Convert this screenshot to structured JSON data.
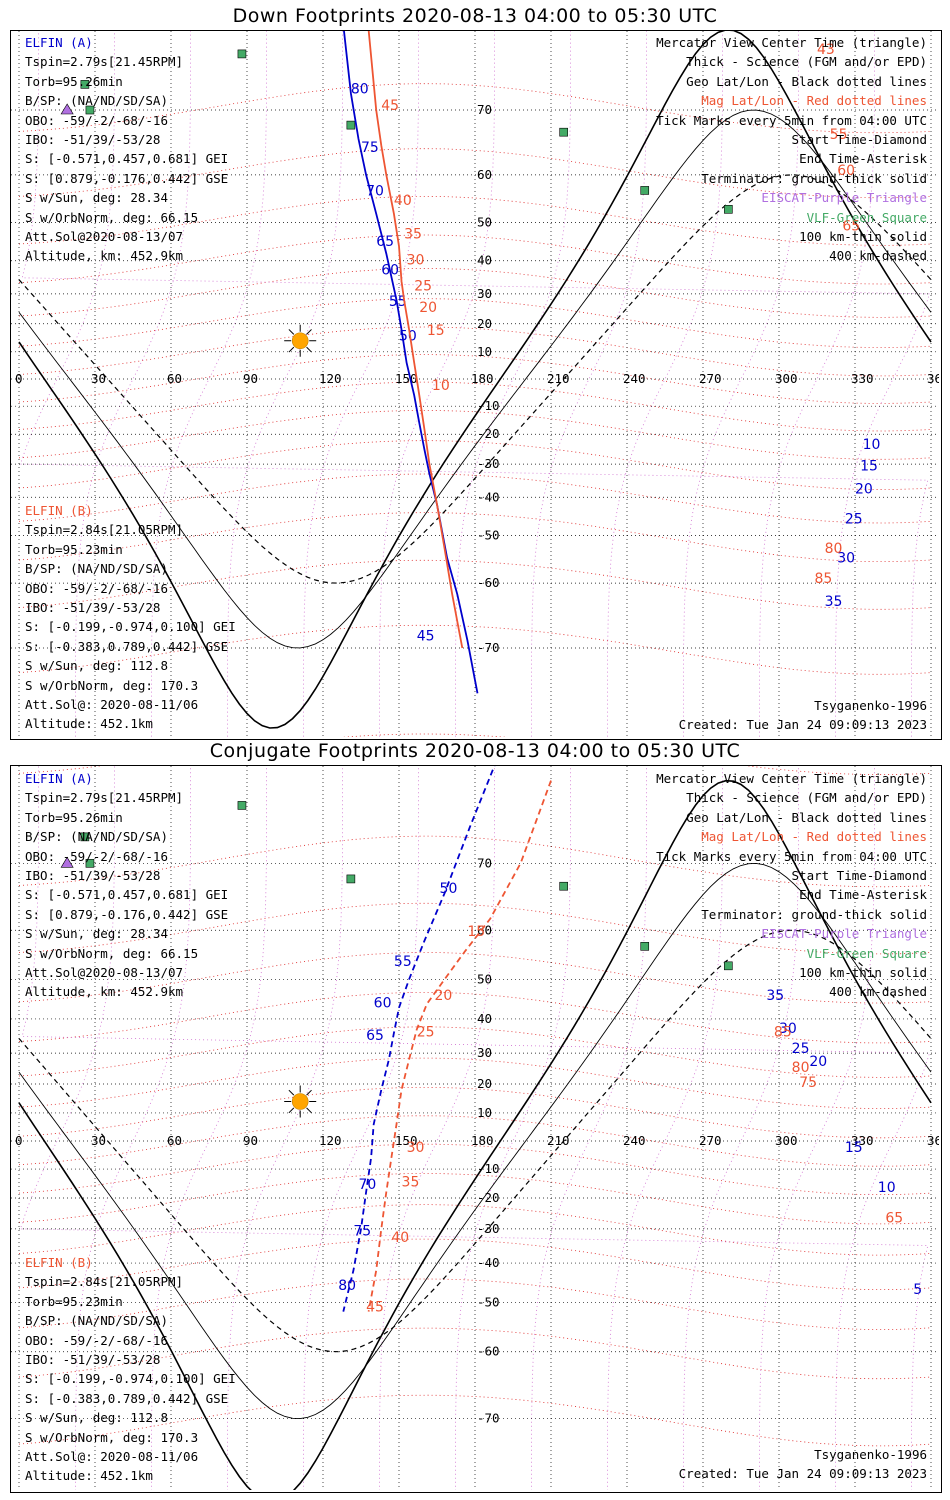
{
  "panels": [
    {
      "title": "Down Footprints 2020-08-13 04:00 to 05:30 UTC",
      "legend": {
        "line1": "Mercator View Center Time (triangle)",
        "line2": "Thick - Science (FGM and/or EPD)",
        "line3": "Geo Lat/Lon - Black dotted lines",
        "line4": "Mag Lat/Lon - Red dotted lines",
        "line5": "Tick Marks every 5min from 04:00 UTC",
        "line6": "Start Time-Diamond",
        "line7": "End Time-Asterisk",
        "line8": "Terminator: ground-thick solid",
        "line9": "EISCAT-Purple Triangle",
        "line10": "VLF-Green Square",
        "line11": "100 km-thin solid",
        "line12": "400 km-dashed"
      },
      "elfin_a": {
        "name": "ELFIN (A)",
        "l1": "Tspin=2.79s[21.45RPM]",
        "l2": "Torb=95.26min",
        "l3": "B/SP: (NA/ND/SD/SA)",
        "l4": "OBO: -59/-2/-68/-16",
        "l5": "IBO: -51/39/-53/28",
        "l6": "S: [-0.571,0.457,0.681] GEI",
        "l7": "S: [0.879,-0.176,0.442] GSE",
        "l8": "S w/Sun, deg: 28.34",
        "l9": "S w/OrbNorm, deg: 66.15",
        "l10": "Att.Sol@2020-08-13/07",
        "l11": "Altitude, km: 452.9km"
      },
      "elfin_b": {
        "name": "ELFIN (B)",
        "l1": "Tspin=2.84s[21.05RPM]",
        "l2": "Torb=95.23min",
        "l3": "B/SP: (NA/ND/SD/SA)",
        "l4": "OBO: -59/-2/-68/-16",
        "l5": "IBO: -51/39/-53/28",
        "l6": "S: [-0.199,-0.974,0.100] GEI",
        "l7": "S: [-0.383,0.789,0.442] GSE",
        "l8": "S w/Sun, deg: 112.8",
        "l9": "S w/OrbNorm, deg: 170.3",
        "l10": "Att.Sol@: 2020-08-11/06",
        "l11": "Altitude: 452.1km"
      },
      "model": "Tsyganenko-1996",
      "created": "Created: Tue Jan 24 09:09:13 2023"
    },
    {
      "title": "Conjugate Footprints 2020-08-13 04:00 to 05:30 UTC",
      "legend": {
        "line1": "Mercator View Center Time (triangle)",
        "line2": "Thick - Science (FGM and/or EPD)",
        "line3": "Geo Lat/Lon - Black dotted lines",
        "line4": "Mag Lat/Lon - Red dotted lines",
        "line5": "Tick Marks every 5min from 04:00 UTC",
        "line6": "Start Time-Diamond",
        "line7": "End Time-Asterisk",
        "line8": "Terminator: ground-thick solid",
        "line9": "EISCAT-Purple Triangle",
        "line10": "VLF-Green Square",
        "line11": "100 km-thin solid",
        "line12": "400 km-dashed"
      },
      "elfin_a": {
        "name": "ELFIN (A)",
        "l1": "Tspin=2.79s[21.45RPM]",
        "l2": "Torb=95.26min",
        "l3": "B/SP: (NA/ND/SD/SA)",
        "l4": "OBO: -59/-2/-68/-16",
        "l5": "IBO: -51/39/-53/28",
        "l6": "S: [-0.571,0.457,0.681] GEI",
        "l7": "S: [0.879,-0.176,0.442] GSE",
        "l8": "S w/Sun, deg: 28.34",
        "l9": "S w/OrbNorm, deg: 66.15",
        "l10": "Att.Sol@2020-08-13/07",
        "l11": "Altitude, km: 452.9km"
      },
      "elfin_b": {
        "name": "ELFIN (B)",
        "l1": "Tspin=2.84s[21.05RPM]",
        "l2": "Torb=95.23min",
        "l3": "B/SP: (NA/ND/SD/SA)",
        "l4": "OBO: -59/-2/-68/-16",
        "l5": "IBO: -51/39/-53/28",
        "l6": "S: [-0.199,-0.974,0.100] GEI",
        "l7": "S: [-0.383,0.789,0.442] GSE",
        "l8": "S w/Sun, deg: 112.8",
        "l9": "S w/OrbNorm, deg: 170.3",
        "l10": "Att.Sol@: 2020-08-11/06",
        "l11": "Altitude: 452.1km"
      },
      "model": "Tsyganenko-1996",
      "created": "Created: Tue Jan 24 09:09:13 2023"
    }
  ],
  "colors": {
    "elfin_a": "#0000cc",
    "elfin_b": "#ee5533",
    "mag_grid": "#dd2222",
    "eiscat": "#b070e0",
    "vlf": "#44aa66",
    "sun": "#ffa500"
  },
  "chart_data": [
    {
      "type": "map",
      "title": "Down Footprints 2020-08-13 04:00 to 05:30 UTC",
      "x_ticks": [
        0,
        30,
        60,
        90,
        120,
        150,
        180,
        210,
        240,
        270,
        300,
        330,
        360
      ],
      "y_ticks": [
        70,
        60,
        50,
        40,
        30,
        20,
        10,
        -10,
        -20,
        -30,
        -40,
        -50,
        -60,
        -70
      ],
      "xlim": [
        0,
        360
      ],
      "grid": true,
      "sun": {
        "lon": 111,
        "lat": 14
      },
      "vlf_sites": [
        [
          88,
          76
        ],
        [
          26,
          73
        ],
        [
          28,
          70
        ],
        [
          131,
          68
        ],
        [
          215,
          67
        ],
        [
          247,
          57
        ],
        [
          280,
          53
        ]
      ],
      "eiscat_sites": [
        [
          19,
          70
        ]
      ],
      "elfin_a_track": {
        "points": [
          [
            124,
            85
          ],
          [
            127,
            80
          ],
          [
            131,
            72
          ],
          [
            134,
            66
          ],
          [
            137,
            60
          ],
          [
            141,
            52
          ],
          [
            145,
            42
          ],
          [
            149,
            28
          ],
          [
            151,
            18
          ],
          [
            153,
            6
          ],
          [
            156,
            -6
          ],
          [
            158,
            -16
          ],
          [
            160,
            -25
          ],
          [
            162,
            -33
          ],
          [
            165,
            -42
          ],
          [
            167,
            -49
          ],
          [
            169,
            -55
          ],
          [
            173,
            -62
          ],
          [
            177,
            -69
          ],
          [
            181,
            -75
          ]
        ],
        "tick_labels": [
          [
            80,
            131,
            72
          ],
          [
            75,
            135,
            64
          ],
          [
            70,
            137,
            56
          ],
          [
            65,
            141,
            44
          ],
          [
            60,
            143,
            36
          ],
          [
            55,
            146,
            26
          ],
          [
            50,
            150,
            14
          ],
          [
            45,
            157,
            -69
          ],
          [
            35,
            318,
            -64
          ],
          [
            30,
            323,
            -56
          ],
          [
            25,
            326,
            -47
          ],
          [
            20,
            330,
            -39
          ],
          [
            15,
            332,
            -32
          ],
          [
            10,
            333,
            -25
          ]
        ]
      },
      "elfin_b_track": {
        "points": [
          [
            135,
            84
          ],
          [
            138,
            78
          ],
          [
            141,
            70
          ],
          [
            143,
            65
          ],
          [
            145,
            60
          ],
          [
            148,
            52
          ],
          [
            150,
            44
          ],
          [
            151,
            34
          ],
          [
            152,
            28
          ],
          [
            154,
            18
          ],
          [
            156,
            6
          ],
          [
            158,
            -6
          ],
          [
            160,
            -18
          ],
          [
            162,
            -30
          ],
          [
            165,
            -42
          ],
          [
            168,
            -53
          ],
          [
            171,
            -62
          ],
          [
            175,
            -70
          ]
        ],
        "tick_labels": [
          [
            45,
            143,
            70
          ],
          [
            40,
            148,
            54
          ],
          [
            35,
            152,
            46
          ],
          [
            30,
            153,
            39
          ],
          [
            25,
            156,
            31
          ],
          [
            20,
            158,
            24
          ],
          [
            15,
            161,
            16
          ],
          [
            10,
            163,
            -4
          ],
          [
            85,
            314,
            -60
          ],
          [
            80,
            318,
            -54
          ],
          [
            65,
            325,
            48
          ],
          [
            60,
            323,
            60
          ],
          [
            55,
            320,
            66
          ],
          [
            43,
            315,
            76
          ]
        ]
      }
    },
    {
      "type": "map",
      "title": "Conjugate Footprints 2020-08-13 04:00 to 05:30 UTC",
      "x_ticks": [
        0,
        30,
        60,
        90,
        120,
        150,
        180,
        210,
        240,
        270,
        300,
        330,
        360
      ],
      "y_ticks": [
        70,
        60,
        50,
        40,
        30,
        20,
        10,
        -10,
        -20,
        -30,
        -40,
        -50,
        -60,
        -70
      ],
      "xlim": [
        0,
        360
      ],
      "grid": true,
      "sun": {
        "lon": 111,
        "lat": 14
      },
      "vlf_sites": [
        [
          88,
          76
        ],
        [
          26,
          73
        ],
        [
          28,
          70
        ],
        [
          131,
          68
        ],
        [
          215,
          67
        ],
        [
          247,
          57
        ],
        [
          280,
          53
        ]
      ],
      "eiscat_sites": [
        [
          19,
          70
        ]
      ],
      "elfin_a_track": {
        "points": [
          [
            190,
            80
          ],
          [
            178,
            74
          ],
          [
            168,
            66
          ],
          [
            160,
            58
          ],
          [
            154,
            50
          ],
          [
            150,
            43
          ],
          [
            148,
            36
          ],
          [
            146,
            28
          ],
          [
            143,
            18
          ],
          [
            140,
            6
          ],
          [
            139,
            -6
          ],
          [
            137,
            -18
          ],
          [
            135,
            -30
          ],
          [
            132,
            -42
          ],
          [
            128,
            -52
          ]
        ],
        "tick_labels": [
          [
            50,
            166,
            66
          ],
          [
            55,
            148,
            53
          ],
          [
            60,
            140,
            43
          ],
          [
            65,
            137,
            34
          ],
          [
            70,
            134,
            -17
          ],
          [
            75,
            132,
            -32
          ],
          [
            80,
            126,
            -47
          ],
          [
            35,
            295,
            45
          ],
          [
            30,
            300,
            36
          ],
          [
            25,
            305,
            30
          ],
          [
            20,
            312,
            26
          ],
          [
            15,
            326,
            -4
          ],
          [
            10,
            339,
            -18
          ],
          [
            5,
            353,
            -48
          ]
        ]
      },
      "elfin_b_track": {
        "points": [
          [
            210,
            78
          ],
          [
            198,
            70
          ],
          [
            186,
            62
          ],
          [
            176,
            56
          ],
          [
            168,
            50
          ],
          [
            161,
            44
          ],
          [
            157,
            37
          ],
          [
            154,
            28
          ],
          [
            151,
            18
          ],
          [
            149,
            6
          ],
          [
            147,
            -6
          ],
          [
            145,
            -18
          ],
          [
            143,
            -30
          ],
          [
            141,
            -42
          ],
          [
            138,
            -52
          ]
        ],
        "tick_labels": [
          [
            15,
            177,
            59
          ],
          [
            20,
            164,
            45
          ],
          [
            25,
            157,
            35
          ],
          [
            30,
            153,
            -4
          ],
          [
            35,
            151,
            -16
          ],
          [
            40,
            147,
            -34
          ],
          [
            45,
            137,
            -52
          ],
          [
            85,
            298,
            35
          ],
          [
            80,
            305,
            24
          ],
          [
            75,
            308,
            19
          ],
          [
            65,
            342,
            -28
          ]
        ]
      }
    }
  ]
}
